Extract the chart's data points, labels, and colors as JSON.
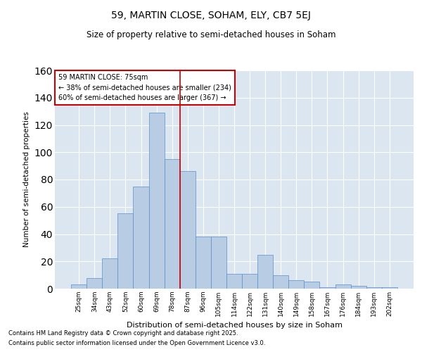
{
  "title_line1": "59, MARTIN CLOSE, SOHAM, ELY, CB7 5EJ",
  "title_line2": "Size of property relative to semi-detached houses in Soham",
  "xlabel": "Distribution of semi-detached houses by size in Soham",
  "ylabel": "Number of semi-detached properties",
  "categories": [
    "25sqm",
    "34sqm",
    "43sqm",
    "52sqm",
    "60sqm",
    "69sqm",
    "78sqm",
    "87sqm",
    "96sqm",
    "105sqm",
    "114sqm",
    "122sqm",
    "131sqm",
    "140sqm",
    "149sqm",
    "158sqm",
    "167sqm",
    "176sqm",
    "184sqm",
    "193sqm",
    "202sqm"
  ],
  "values": [
    3,
    8,
    22,
    55,
    75,
    129,
    95,
    86,
    38,
    38,
    11,
    11,
    25,
    10,
    6,
    5,
    1,
    3,
    2,
    1,
    1
  ],
  "bar_color": "#b8cce4",
  "bar_edge_color": "#5b8fc9",
  "property_bin_index": 6,
  "vline_color": "#cc0000",
  "annotation_text_line1": "59 MARTIN CLOSE: 75sqm",
  "annotation_text_line2": "← 38% of semi-detached houses are smaller (234)",
  "annotation_text_line3": "60% of semi-detached houses are larger (367) →",
  "annotation_box_color": "#cc0000",
  "annotation_box_fill": "#ffffff",
  "ylim": [
    0,
    160
  ],
  "yticks": [
    0,
    20,
    40,
    60,
    80,
    100,
    120,
    140,
    160
  ],
  "footnote_line1": "Contains HM Land Registry data © Crown copyright and database right 2025.",
  "footnote_line2": "Contains public sector information licensed under the Open Government Licence v3.0.",
  "plot_bg_color": "#dce6f1",
  "fig_bg_color": "#ffffff"
}
